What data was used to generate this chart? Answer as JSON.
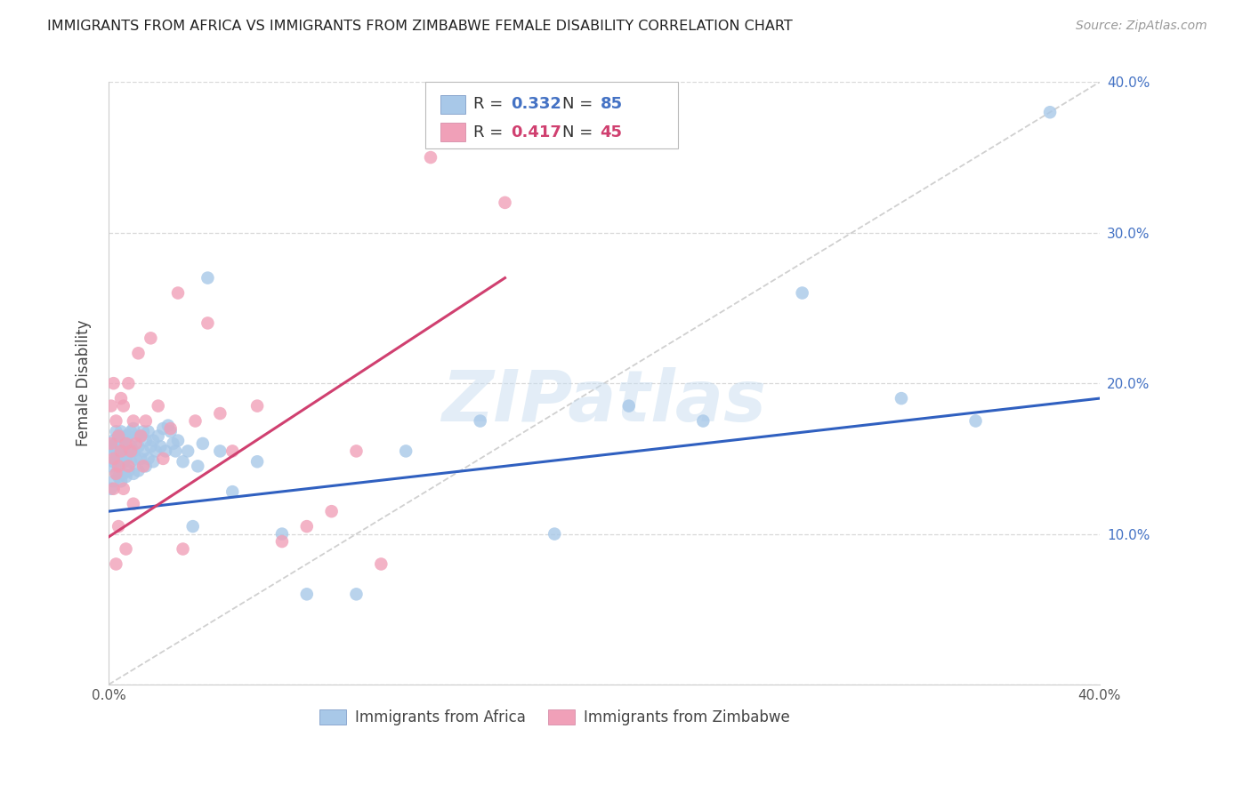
{
  "title": "IMMIGRANTS FROM AFRICA VS IMMIGRANTS FROM ZIMBABWE FEMALE DISABILITY CORRELATION CHART",
  "source": "Source: ZipAtlas.com",
  "ylabel": "Female Disability",
  "x_min": 0.0,
  "x_max": 0.4,
  "y_min": 0.0,
  "y_max": 0.4,
  "legend_r1": "0.332",
  "legend_n1": "85",
  "legend_r2": "0.417",
  "legend_n2": "45",
  "color_africa": "#a8c8e8",
  "color_zimbabwe": "#f0a0b8",
  "color_africa_line": "#3060c0",
  "color_zimbabwe_line": "#d04070",
  "watermark": "ZIPatlas",
  "africa_x": [
    0.001,
    0.001,
    0.001,
    0.002,
    0.002,
    0.002,
    0.002,
    0.003,
    0.003,
    0.003,
    0.003,
    0.003,
    0.004,
    0.004,
    0.004,
    0.004,
    0.004,
    0.005,
    0.005,
    0.005,
    0.005,
    0.005,
    0.006,
    0.006,
    0.006,
    0.006,
    0.007,
    0.007,
    0.007,
    0.007,
    0.008,
    0.008,
    0.008,
    0.009,
    0.009,
    0.009,
    0.01,
    0.01,
    0.01,
    0.011,
    0.011,
    0.012,
    0.012,
    0.013,
    0.013,
    0.014,
    0.014,
    0.015,
    0.015,
    0.016,
    0.016,
    0.017,
    0.018,
    0.018,
    0.019,
    0.02,
    0.021,
    0.022,
    0.023,
    0.024,
    0.025,
    0.026,
    0.027,
    0.028,
    0.03,
    0.032,
    0.034,
    0.036,
    0.038,
    0.04,
    0.045,
    0.05,
    0.06,
    0.07,
    0.08,
    0.1,
    0.12,
    0.15,
    0.18,
    0.21,
    0.24,
    0.28,
    0.32,
    0.35,
    0.38
  ],
  "africa_y": [
    0.13,
    0.145,
    0.158,
    0.135,
    0.148,
    0.155,
    0.162,
    0.14,
    0.15,
    0.16,
    0.168,
    0.155,
    0.138,
    0.148,
    0.158,
    0.165,
    0.145,
    0.135,
    0.15,
    0.16,
    0.168,
    0.155,
    0.14,
    0.152,
    0.162,
    0.148,
    0.138,
    0.15,
    0.165,
    0.155,
    0.142,
    0.155,
    0.165,
    0.148,
    0.158,
    0.168,
    0.14,
    0.155,
    0.17,
    0.15,
    0.165,
    0.142,
    0.158,
    0.15,
    0.165,
    0.155,
    0.168,
    0.145,
    0.162,
    0.15,
    0.168,
    0.158,
    0.148,
    0.162,
    0.155,
    0.165,
    0.158,
    0.17,
    0.155,
    0.172,
    0.168,
    0.16,
    0.155,
    0.162,
    0.148,
    0.155,
    0.105,
    0.145,
    0.16,
    0.27,
    0.155,
    0.128,
    0.148,
    0.1,
    0.06,
    0.06,
    0.155,
    0.175,
    0.1,
    0.185,
    0.175,
    0.26,
    0.19,
    0.175,
    0.38
  ],
  "zimbabwe_x": [
    0.001,
    0.001,
    0.002,
    0.002,
    0.002,
    0.003,
    0.003,
    0.003,
    0.004,
    0.004,
    0.004,
    0.005,
    0.005,
    0.006,
    0.006,
    0.007,
    0.007,
    0.008,
    0.008,
    0.009,
    0.01,
    0.01,
    0.011,
    0.012,
    0.013,
    0.014,
    0.015,
    0.017,
    0.02,
    0.022,
    0.025,
    0.028,
    0.03,
    0.035,
    0.04,
    0.045,
    0.05,
    0.06,
    0.07,
    0.08,
    0.09,
    0.1,
    0.11,
    0.13,
    0.16
  ],
  "zimbabwe_y": [
    0.16,
    0.185,
    0.13,
    0.15,
    0.2,
    0.08,
    0.14,
    0.175,
    0.105,
    0.145,
    0.165,
    0.19,
    0.155,
    0.13,
    0.185,
    0.16,
    0.09,
    0.145,
    0.2,
    0.155,
    0.12,
    0.175,
    0.16,
    0.22,
    0.165,
    0.145,
    0.175,
    0.23,
    0.185,
    0.15,
    0.17,
    0.26,
    0.09,
    0.175,
    0.24,
    0.18,
    0.155,
    0.185,
    0.095,
    0.105,
    0.115,
    0.155,
    0.08,
    0.35,
    0.32
  ],
  "africa_line_x0": 0.0,
  "africa_line_y0": 0.115,
  "africa_line_x1": 0.4,
  "africa_line_y1": 0.19,
  "zimbabwe_line_x0": 0.0,
  "zimbabwe_line_y0": 0.098,
  "zimbabwe_line_x1": 0.16,
  "zimbabwe_line_y1": 0.27
}
